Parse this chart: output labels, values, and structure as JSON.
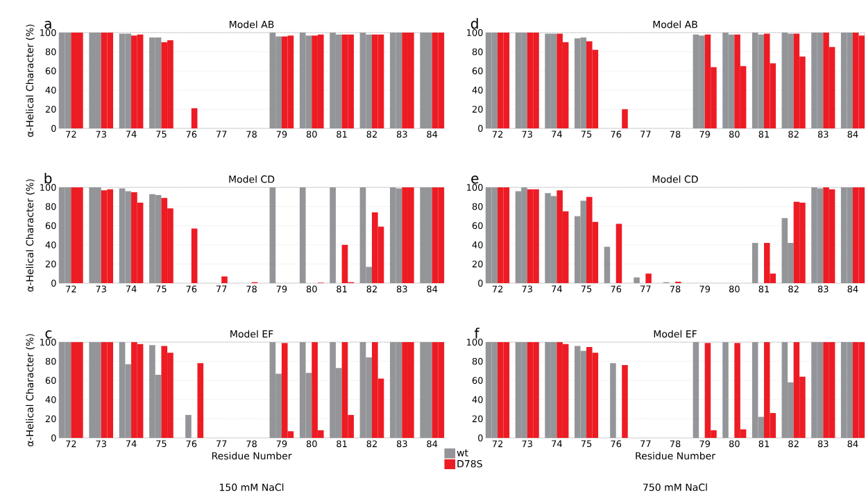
{
  "chart_data": [
    {
      "type": "bar",
      "title": "Model AB",
      "ylabel": "α-Helical Character (%)",
      "annotations": [
        "a"
      ],
      "categories": [
        "72",
        "73",
        "74",
        "75",
        "76",
        "77",
        "78",
        "79",
        "80",
        "81",
        "82",
        "83",
        "84"
      ],
      "series": [
        {
          "color": "#939598",
          "values": [
            100,
            100,
            99,
            95,
            0,
            0,
            0,
            100,
            100,
            100,
            100,
            100,
            100
          ]
        },
        {
          "color": "#939598",
          "values": [
            100,
            100,
            99,
            95,
            0,
            0,
            0,
            96,
            97,
            98,
            98,
            100,
            100
          ]
        },
        {
          "color": "#ed1c24",
          "values": [
            100,
            100,
            97,
            90,
            21,
            0,
            0,
            96,
            97,
            98,
            98,
            100,
            100
          ]
        },
        {
          "color": "#ed1c24",
          "values": [
            100,
            100,
            98,
            92,
            0,
            0,
            0,
            97,
            98,
            98,
            98,
            100,
            100
          ]
        }
      ],
      "ylim": [
        0,
        100
      ],
      "yticks": [
        0,
        20,
        40,
        60,
        80,
        100
      ],
      "grid": "y"
    },
    {
      "type": "bar",
      "title": "Model CD",
      "ylabel": "α-Helical Character (%)",
      "annotations": [
        "b"
      ],
      "categories": [
        "72",
        "73",
        "74",
        "75",
        "76",
        "77",
        "78",
        "79",
        "80",
        "81",
        "82",
        "83",
        "84"
      ],
      "series": [
        {
          "color": "#939598",
          "values": [
            100,
            100,
            99,
            93,
            0,
            0,
            0,
            100,
            100,
            100,
            100,
            100,
            100
          ]
        },
        {
          "color": "#939598",
          "values": [
            100,
            100,
            96,
            92,
            0,
            0,
            0,
            0,
            0,
            null,
            17,
            99,
            100
          ]
        },
        {
          "color": "#ed1c24",
          "values": [
            100,
            97,
            95,
            89,
            57,
            7,
            1,
            0,
            0,
            40,
            74,
            100,
            100
          ]
        },
        {
          "color": "#ed1c24",
          "values": [
            100,
            98,
            84,
            78,
            0,
            0,
            0,
            0,
            0.5,
            1,
            59,
            100,
            100
          ]
        }
      ],
      "ylim": [
        0,
        100
      ],
      "yticks": [
        0,
        20,
        40,
        60,
        80,
        100
      ],
      "grid": "y"
    },
    {
      "type": "bar",
      "title": "Model EF",
      "ylabel": "α-Helical Character (%)",
      "xlabel": "Residue Number",
      "annotations": [
        "c",
        "150 mM NaCl"
      ],
      "categories": [
        "72",
        "73",
        "74",
        "75",
        "76",
        "77",
        "78",
        "79",
        "80",
        "81",
        "82",
        "83",
        "84"
      ],
      "series": [
        {
          "name": "wt",
          "color": "#939598",
          "values": [
            100,
            100,
            100,
            97,
            0,
            0,
            0,
            100,
            100,
            100,
            100,
            100,
            100
          ]
        },
        {
          "color": "#939598",
          "values": [
            100,
            100,
            77,
            66,
            24,
            0,
            0,
            67,
            68,
            73,
            84,
            100,
            100
          ]
        },
        {
          "name": "D78S",
          "color": "#ed1c24",
          "values": [
            100,
            100,
            100,
            96,
            0,
            0,
            0,
            99,
            100,
            100,
            100,
            100,
            100
          ]
        },
        {
          "color": "#ed1c24",
          "values": [
            100,
            100,
            98,
            89,
            78,
            0,
            0,
            7,
            8,
            24,
            62,
            100,
            100
          ]
        }
      ],
      "ylim": [
        0,
        100
      ],
      "yticks": [
        0,
        20,
        40,
        60,
        80,
        100
      ],
      "grid": "y",
      "legend": "bottom right"
    },
    {
      "type": "bar",
      "title": "Model AB",
      "annotations": [
        "d"
      ],
      "categories": [
        "72",
        "73",
        "74",
        "75",
        "76",
        "77",
        "78",
        "79",
        "80",
        "81",
        "82",
        "83",
        "84"
      ],
      "series": [
        {
          "color": "#939598",
          "values": [
            100,
            100,
            99,
            94,
            0,
            0,
            0,
            98,
            100,
            100,
            100,
            100,
            100
          ]
        },
        {
          "color": "#939598",
          "values": [
            100,
            100,
            99,
            95,
            0,
            0,
            0,
            97,
            98,
            98,
            99,
            100,
            100
          ]
        },
        {
          "color": "#ed1c24",
          "values": [
            100,
            100,
            99,
            91,
            0,
            0,
            0,
            98,
            98,
            99,
            99,
            100,
            100
          ]
        },
        {
          "color": "#ed1c24",
          "values": [
            100,
            100,
            90,
            82,
            20,
            0,
            0,
            64,
            65,
            68,
            75,
            85,
            97
          ]
        }
      ],
      "ylim": [
        0,
        100
      ],
      "yticks": [
        0,
        20,
        40,
        60,
        80,
        100
      ],
      "grid": "y"
    },
    {
      "type": "bar",
      "title": "Model CD",
      "annotations": [
        "e"
      ],
      "categories": [
        "72",
        "73",
        "74",
        "75",
        "76",
        "77",
        "78",
        "79",
        "80",
        "81",
        "82",
        "83",
        "84"
      ],
      "series": [
        {
          "color": "#939598",
          "values": [
            100,
            96,
            94,
            70,
            38,
            6,
            1,
            0,
            0,
            42,
            68,
            100,
            100
          ]
        },
        {
          "color": "#939598",
          "values": [
            100,
            100,
            91,
            86,
            0,
            0,
            0,
            0,
            0,
            0,
            42,
            99,
            100
          ]
        },
        {
          "color": "#ed1c24",
          "values": [
            100,
            98,
            97,
            90,
            62,
            10,
            1.5,
            0,
            0,
            42,
            85,
            100,
            100
          ]
        },
        {
          "color": "#ed1c24",
          "values": [
            100,
            98,
            75,
            64,
            0,
            0,
            0,
            0,
            0,
            10,
            84,
            98,
            100
          ]
        }
      ],
      "ylim": [
        0,
        100
      ],
      "yticks": [
        0,
        20,
        40,
        60,
        80,
        100
      ],
      "grid": "y"
    },
    {
      "type": "bar",
      "title": "Model EF",
      "xlabel": "Residue Number",
      "annotations": [
        "f",
        "750 mM NaCl"
      ],
      "categories": [
        "72",
        "73",
        "74",
        "75",
        "76",
        "77",
        "78",
        "79",
        "80",
        "81",
        "82",
        "83",
        "84"
      ],
      "series": [
        {
          "color": "#939598",
          "values": [
            100,
            100,
            100,
            96,
            0,
            0,
            0,
            100,
            100,
            100,
            100,
            100,
            100
          ]
        },
        {
          "color": "#939598",
          "values": [
            100,
            100,
            100,
            91,
            78,
            0,
            0,
            0,
            0,
            22,
            58,
            100,
            100
          ]
        },
        {
          "color": "#ed1c24",
          "values": [
            100,
            100,
            100,
            95,
            0,
            0,
            0,
            99,
            99,
            100,
            100,
            100,
            100
          ]
        },
        {
          "color": "#ed1c24",
          "values": [
            100,
            100,
            98,
            89,
            76,
            0,
            0,
            8,
            9,
            26,
            64,
            100,
            100
          ]
        }
      ],
      "ylim": [
        0,
        100
      ],
      "yticks": [
        0,
        20,
        40,
        60,
        80,
        100
      ],
      "grid": "y"
    }
  ]
}
